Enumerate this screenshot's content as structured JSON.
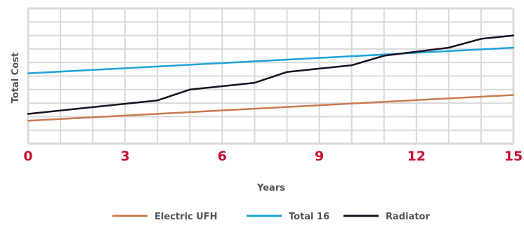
{
  "chart_data": {
    "type": "line",
    "title": "",
    "xlabel": "Years",
    "ylabel": "Total Cost",
    "xlim": [
      0,
      15
    ],
    "ylim": [
      0,
      10
    ],
    "x_ticks": [
      "0",
      "3",
      "6",
      "9",
      "12",
      "15"
    ],
    "x_minor_step": 1,
    "y_grid_step": 1,
    "grid": true,
    "legend_position": "bottom-center",
    "colors": {
      "grid": "#d9d9d9",
      "tick_labels": "#c8102e",
      "axis_title": "#555555"
    },
    "series": [
      {
        "name": "Electric UFH",
        "color": "#c97a4f",
        "x": [
          0,
          15
        ],
        "y": [
          1.7,
          3.6
        ]
      },
      {
        "name": "Total 16",
        "color": "#1ea3d9",
        "x": [
          0,
          15
        ],
        "y": [
          5.2,
          7.1
        ]
      },
      {
        "name": "Radiator",
        "color": "#1a1020",
        "x": [
          0,
          4,
          5,
          6,
          7,
          8,
          9,
          10,
          11,
          12,
          13,
          14,
          15
        ],
        "y": [
          2.2,
          3.2,
          4.0,
          4.25,
          4.5,
          5.3,
          5.55,
          5.8,
          6.5,
          6.8,
          7.1,
          7.75,
          8.0
        ]
      }
    ]
  }
}
